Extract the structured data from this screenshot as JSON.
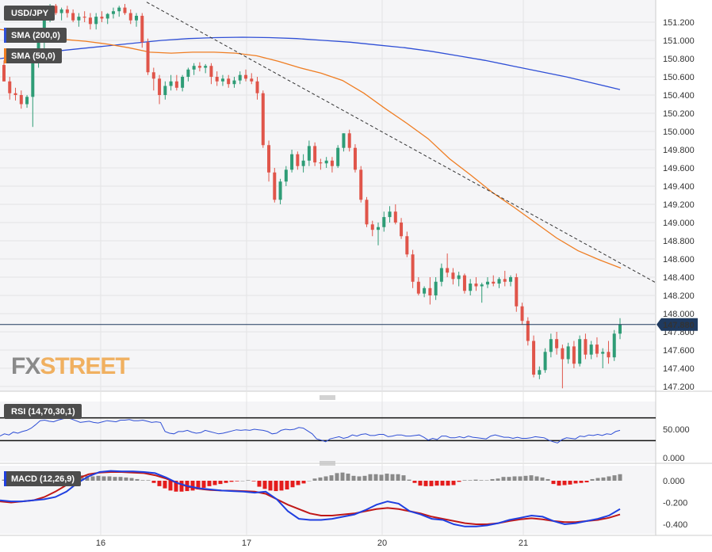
{
  "symbol": "USD/JPY",
  "colors": {
    "up": "#2e9c76",
    "down": "#e0554a",
    "sma200": "#2f4fd6",
    "sma50": "#ef7d22",
    "macd": "#1f3fe0",
    "signal": "#c01818",
    "hist_pos": "#8a8a8a",
    "hist_neg": "#e41c1c",
    "rsi": "#2f4fd6",
    "grid": "#e4e4e4",
    "panel_bg": "#f5f5f7",
    "price_badge": "#1f3a5f"
  },
  "logo": {
    "fx": "FX",
    "street": "STREET"
  },
  "current_price": "147.880",
  "chart_data": [
    {
      "type": "candlestick",
      "title": "USD/JPY",
      "x_ticks": [
        "16",
        "17",
        "20",
        "21"
      ],
      "y_ticks": [
        "151.200",
        "151.000",
        "150.800",
        "150.600",
        "150.400",
        "150.200",
        "150.000",
        "149.800",
        "149.600",
        "149.400",
        "149.200",
        "149.000",
        "148.800",
        "148.600",
        "148.400",
        "148.200",
        "148.000",
        "147.800",
        "147.600",
        "147.400",
        "147.200"
      ],
      "ylim": [
        147.13,
        151.43
      ],
      "grid": true,
      "current_price": 147.88,
      "candles": [
        [
          150.73,
          150.78,
          150.55,
          150.55
        ],
        [
          150.55,
          150.6,
          150.35,
          150.42
        ],
        [
          150.42,
          150.48,
          150.34,
          150.4
        ],
        [
          150.4,
          150.45,
          150.25,
          150.3
        ],
        [
          150.3,
          150.4,
          150.26,
          150.38
        ],
        [
          150.38,
          150.83,
          150.05,
          150.75
        ],
        [
          150.75,
          151.1,
          150.7,
          151.05
        ],
        [
          151.05,
          151.35,
          150.9,
          151.3
        ],
        [
          151.3,
          151.4,
          151.2,
          151.38
        ],
        [
          151.38,
          151.4,
          151.28,
          151.3
        ],
        [
          151.3,
          151.36,
          151.22,
          151.34
        ],
        [
          151.34,
          151.38,
          151.25,
          151.3
        ],
        [
          151.3,
          151.34,
          151.2,
          151.22
        ],
        [
          151.22,
          151.3,
          151.15,
          151.26
        ],
        [
          151.26,
          151.32,
          151.2,
          151.25
        ],
        [
          151.25,
          151.3,
          151.12,
          151.18
        ],
        [
          151.18,
          151.3,
          151.12,
          151.26
        ],
        [
          151.26,
          151.32,
          151.2,
          151.24
        ],
        [
          151.24,
          151.3,
          151.18,
          151.29
        ],
        [
          151.29,
          151.36,
          151.24,
          151.32
        ],
        [
          151.32,
          151.38,
          151.26,
          151.36
        ],
        [
          151.36,
          151.4,
          151.28,
          151.3
        ],
        [
          151.3,
          151.34,
          151.18,
          151.22
        ],
        [
          151.22,
          151.3,
          151.15,
          151.27
        ],
        [
          151.27,
          151.3,
          150.92,
          150.98
        ],
        [
          150.98,
          151.02,
          150.62,
          150.65
        ],
        [
          150.65,
          150.7,
          150.45,
          150.58
        ],
        [
          150.58,
          150.62,
          150.3,
          150.4
        ],
        [
          150.4,
          150.55,
          150.35,
          150.5
        ],
        [
          150.5,
          150.62,
          150.45,
          150.55
        ],
        [
          150.55,
          150.62,
          150.45,
          150.48
        ],
        [
          150.48,
          150.62,
          150.44,
          150.6
        ],
        [
          150.6,
          150.7,
          150.55,
          150.68
        ],
        [
          150.68,
          150.75,
          150.62,
          150.72
        ],
        [
          150.72,
          150.76,
          150.66,
          150.7
        ],
        [
          150.7,
          150.74,
          150.64,
          150.72
        ],
        [
          150.72,
          150.75,
          150.52,
          150.6
        ],
        [
          150.6,
          150.66,
          150.5,
          150.55
        ],
        [
          150.55,
          150.62,
          150.5,
          150.58
        ],
        [
          150.58,
          150.62,
          150.48,
          150.52
        ],
        [
          150.52,
          150.6,
          150.48,
          150.56
        ],
        [
          150.56,
          150.66,
          150.52,
          150.62
        ],
        [
          150.62,
          150.68,
          150.55,
          150.58
        ],
        [
          150.58,
          150.64,
          150.52,
          150.55
        ],
        [
          150.55,
          150.6,
          150.35,
          150.42
        ],
        [
          150.42,
          150.45,
          149.82,
          149.85
        ],
        [
          149.85,
          149.9,
          149.45,
          149.55
        ],
        [
          149.55,
          149.6,
          149.22,
          149.25
        ],
        [
          149.25,
          149.48,
          149.2,
          149.45
        ],
        [
          149.45,
          149.62,
          149.4,
          149.58
        ],
        [
          149.58,
          149.8,
          149.55,
          149.75
        ],
        [
          149.75,
          149.78,
          149.58,
          149.62
        ],
        [
          149.62,
          149.75,
          149.55,
          149.68
        ],
        [
          149.68,
          149.9,
          149.62,
          149.84
        ],
        [
          149.84,
          149.88,
          149.62,
          149.66
        ],
        [
          149.66,
          149.7,
          149.58,
          149.65
        ],
        [
          149.65,
          149.72,
          149.6,
          149.68
        ],
        [
          149.68,
          149.72,
          149.55,
          149.62
        ],
        [
          149.62,
          149.85,
          149.6,
          149.82
        ],
        [
          149.82,
          149.98,
          149.78,
          149.98
        ],
        [
          149.98,
          150.02,
          149.78,
          149.82
        ],
        [
          149.82,
          149.86,
          149.55,
          149.58
        ],
        [
          149.58,
          149.62,
          149.22,
          149.25
        ],
        [
          149.25,
          149.28,
          148.95,
          148.98
        ],
        [
          148.98,
          149.02,
          148.85,
          148.92
        ],
        [
          148.92,
          149.0,
          148.75,
          148.95
        ],
        [
          148.95,
          149.12,
          148.9,
          149.06
        ],
        [
          149.06,
          149.18,
          149.0,
          149.12
        ],
        [
          149.12,
          149.2,
          148.98,
          149.0
        ],
        [
          149.0,
          149.05,
          148.82,
          148.85
        ],
        [
          148.85,
          148.9,
          148.62,
          148.65
        ],
        [
          148.65,
          148.7,
          148.28,
          148.35
        ],
        [
          148.35,
          148.4,
          148.2,
          148.22
        ],
        [
          148.22,
          148.3,
          148.18,
          148.28
        ],
        [
          148.28,
          148.4,
          148.1,
          148.2
        ],
        [
          148.2,
          148.4,
          148.15,
          148.35
        ],
        [
          148.35,
          148.55,
          148.3,
          148.5
        ],
        [
          148.5,
          148.66,
          148.4,
          148.45
        ],
        [
          148.45,
          148.5,
          148.32,
          148.38
        ],
        [
          148.38,
          148.46,
          148.3,
          148.42
        ],
        [
          148.42,
          148.44,
          148.22,
          148.25
        ],
        [
          148.25,
          148.38,
          148.2,
          148.33
        ],
        [
          148.33,
          148.4,
          148.25,
          148.3
        ],
        [
          148.3,
          148.34,
          148.12,
          148.32
        ],
        [
          148.32,
          148.4,
          148.28,
          148.35
        ],
        [
          148.35,
          148.42,
          148.3,
          148.33
        ],
        [
          148.33,
          148.4,
          148.28,
          148.38
        ],
        [
          148.38,
          148.47,
          148.3,
          148.35
        ],
        [
          148.35,
          148.42,
          148.3,
          148.4
        ],
        [
          148.4,
          148.44,
          148.02,
          148.08
        ],
        [
          148.08,
          148.12,
          147.88,
          147.92
        ],
        [
          147.92,
          147.96,
          147.65,
          147.7
        ],
        [
          147.7,
          147.76,
          147.3,
          147.33
        ],
        [
          147.33,
          147.42,
          147.28,
          147.38
        ],
        [
          147.38,
          147.62,
          147.35,
          147.58
        ],
        [
          147.58,
          147.78,
          147.52,
          147.72
        ],
        [
          147.72,
          147.8,
          147.55,
          147.62
        ],
        [
          147.62,
          147.66,
          147.18,
          147.5
        ],
        [
          147.5,
          147.68,
          147.45,
          147.64
        ],
        [
          147.64,
          147.7,
          147.4,
          147.45
        ],
        [
          147.45,
          147.76,
          147.42,
          147.72
        ],
        [
          147.72,
          147.78,
          147.5,
          147.55
        ],
        [
          147.55,
          147.7,
          147.5,
          147.66
        ],
        [
          147.66,
          147.74,
          147.52,
          147.56
        ],
        [
          147.56,
          147.62,
          147.4,
          147.58
        ],
        [
          147.58,
          147.7,
          147.45,
          147.52
        ],
        [
          147.52,
          147.82,
          147.48,
          147.78
        ],
        [
          147.78,
          147.95,
          147.72,
          147.88
        ]
      ],
      "series": [
        {
          "name": "SMA (200,0)",
          "values": [
            150.8,
            150.84,
            150.88,
            150.91,
            150.94,
            150.97,
            151.0,
            151.02,
            151.03,
            151.035,
            151.03,
            151.02,
            151.0,
            150.98,
            150.95,
            150.92,
            150.88,
            150.83,
            150.78,
            150.72,
            150.66,
            150.6,
            150.53,
            150.46
          ]
        },
        {
          "name": "SMA (50,0)",
          "values": [
            151.12,
            151.09,
            151.05,
            151.01,
            150.99,
            150.96,
            150.92,
            150.87,
            150.86,
            150.87,
            150.87,
            150.86,
            150.83,
            150.77,
            150.7,
            150.64,
            150.56,
            150.42,
            150.25,
            150.09,
            149.92,
            149.7,
            149.52,
            149.33,
            149.17,
            149.0,
            148.83,
            148.69,
            148.59,
            148.5
          ]
        }
      ],
      "trendline": [
        151.42,
        148.34
      ]
    },
    {
      "type": "line",
      "title": "RSI (14,70,30,1)",
      "y_ticks": [
        "50.000",
        "0.000"
      ],
      "ylim": [
        0,
        100
      ],
      "thresholds": [
        70,
        30
      ],
      "series": [
        {
          "name": "RSI",
          "values": [
            38,
            42,
            40,
            45,
            43,
            46,
            48,
            52,
            58,
            65,
            66,
            64,
            63,
            66,
            68,
            70,
            68,
            65,
            62,
            63,
            64,
            62,
            61,
            63,
            65,
            64,
            63,
            66,
            66,
            67,
            65,
            65,
            66,
            64,
            62,
            63,
            62,
            46,
            43,
            42,
            46,
            46,
            48,
            45,
            43,
            44,
            48,
            46,
            44,
            42,
            43,
            45,
            47,
            49,
            48,
            49,
            48,
            50,
            49,
            48,
            46,
            42,
            43,
            48,
            50,
            49,
            50,
            53,
            52,
            47,
            42,
            33,
            31,
            28,
            33,
            35,
            37,
            34,
            36,
            40,
            38,
            41,
            42,
            39,
            39,
            41,
            41,
            37,
            38,
            40,
            40,
            38,
            38,
            39,
            40,
            36,
            31,
            34,
            32,
            38,
            38,
            35,
            35,
            37,
            35,
            38,
            36,
            35,
            34,
            33,
            38,
            40,
            38,
            36,
            36,
            34,
            36,
            34,
            34,
            35,
            37,
            36,
            35,
            31,
            28,
            26,
            32,
            35,
            34,
            33,
            38,
            37,
            40,
            39,
            41,
            39,
            42,
            41,
            46,
            48
          ]
        }
      ]
    },
    {
      "type": "line",
      "title": "MACD (12,26,9)",
      "y_ticks": [
        "0.000",
        "-0.200",
        "-0.400"
      ],
      "ylim": [
        -0.45,
        0.14
      ],
      "series": [
        {
          "name": "MACD",
          "values": [
            -0.18,
            -0.19,
            -0.19,
            -0.18,
            -0.17,
            -0.15,
            -0.1,
            -0.02,
            0.04,
            0.08,
            0.09,
            0.085,
            0.085,
            0.08,
            0.07,
            0.03,
            -0.02,
            -0.05,
            -0.07,
            -0.08,
            -0.09,
            -0.095,
            -0.1,
            -0.11,
            -0.1,
            -0.17,
            -0.28,
            -0.35,
            -0.36,
            -0.36,
            -0.35,
            -0.33,
            -0.31,
            -0.27,
            -0.22,
            -0.19,
            -0.21,
            -0.28,
            -0.31,
            -0.35,
            -0.36,
            -0.4,
            -0.42,
            -0.42,
            -0.41,
            -0.39,
            -0.36,
            -0.34,
            -0.32,
            -0.33,
            -0.37,
            -0.4,
            -0.39,
            -0.37,
            -0.35,
            -0.32,
            -0.26
          ]
        },
        {
          "name": "Signal",
          "values": [
            -0.19,
            -0.2,
            -0.19,
            -0.18,
            -0.15,
            -0.1,
            -0.04,
            0.02,
            0.06,
            0.075,
            0.08,
            0.08,
            0.075,
            0.07,
            0.05,
            0.02,
            -0.02,
            -0.055,
            -0.075,
            -0.085,
            -0.09,
            -0.092,
            -0.095,
            -0.1,
            -0.12,
            -0.17,
            -0.22,
            -0.26,
            -0.3,
            -0.32,
            -0.32,
            -0.31,
            -0.3,
            -0.28,
            -0.26,
            -0.25,
            -0.26,
            -0.28,
            -0.3,
            -0.33,
            -0.35,
            -0.37,
            -0.39,
            -0.4,
            -0.4,
            -0.39,
            -0.37,
            -0.355,
            -0.345,
            -0.355,
            -0.37,
            -0.38,
            -0.38,
            -0.37,
            -0.36,
            -0.34,
            -0.31
          ]
        },
        {
          "name": "Histogram",
          "values": [
            0.01,
            0.008,
            0.005,
            0.012,
            0.035,
            0.04,
            0.04,
            0.045,
            0.05,
            0.05,
            0.045,
            0.04,
            0.045,
            0.045,
            0.05,
            0.045,
            0.04,
            0.045,
            0.04,
            0.04,
            0.035,
            0.035,
            0.03,
            0.025,
            0.015,
            0.005,
            0.005,
            -0.02,
            -0.05,
            -0.07,
            -0.09,
            -0.1,
            -0.1,
            -0.095,
            -0.09,
            -0.08,
            -0.065,
            -0.05,
            -0.04,
            -0.03,
            -0.02,
            -0.01,
            -0.005,
            0.0,
            0.005,
            -0.005,
            -0.055,
            -0.075,
            -0.09,
            -0.095,
            -0.09,
            -0.08,
            -0.06,
            -0.04,
            -0.025,
            0.0,
            0.02,
            0.03,
            0.04,
            0.05,
            0.07,
            0.075,
            0.065,
            0.045,
            0.04,
            0.045,
            0.06,
            0.06,
            0.055,
            0.065,
            0.06,
            0.06,
            0.05,
            0.01,
            -0.02,
            -0.045,
            -0.05,
            -0.05,
            -0.045,
            -0.045,
            -0.045,
            -0.04,
            -0.01,
            0.005,
            0.005,
            0.01,
            0.005,
            0.004,
            0.015,
            0.02,
            0.035,
            0.035,
            0.04,
            0.04,
            0.045,
            0.05,
            0.04,
            0.03,
            0.015,
            -0.03,
            -0.045,
            -0.04,
            -0.035,
            -0.025,
            -0.02,
            -0.015,
            0.015,
            0.025,
            0.03,
            0.04,
            0.05,
            0.06
          ]
        }
      ]
    }
  ]
}
